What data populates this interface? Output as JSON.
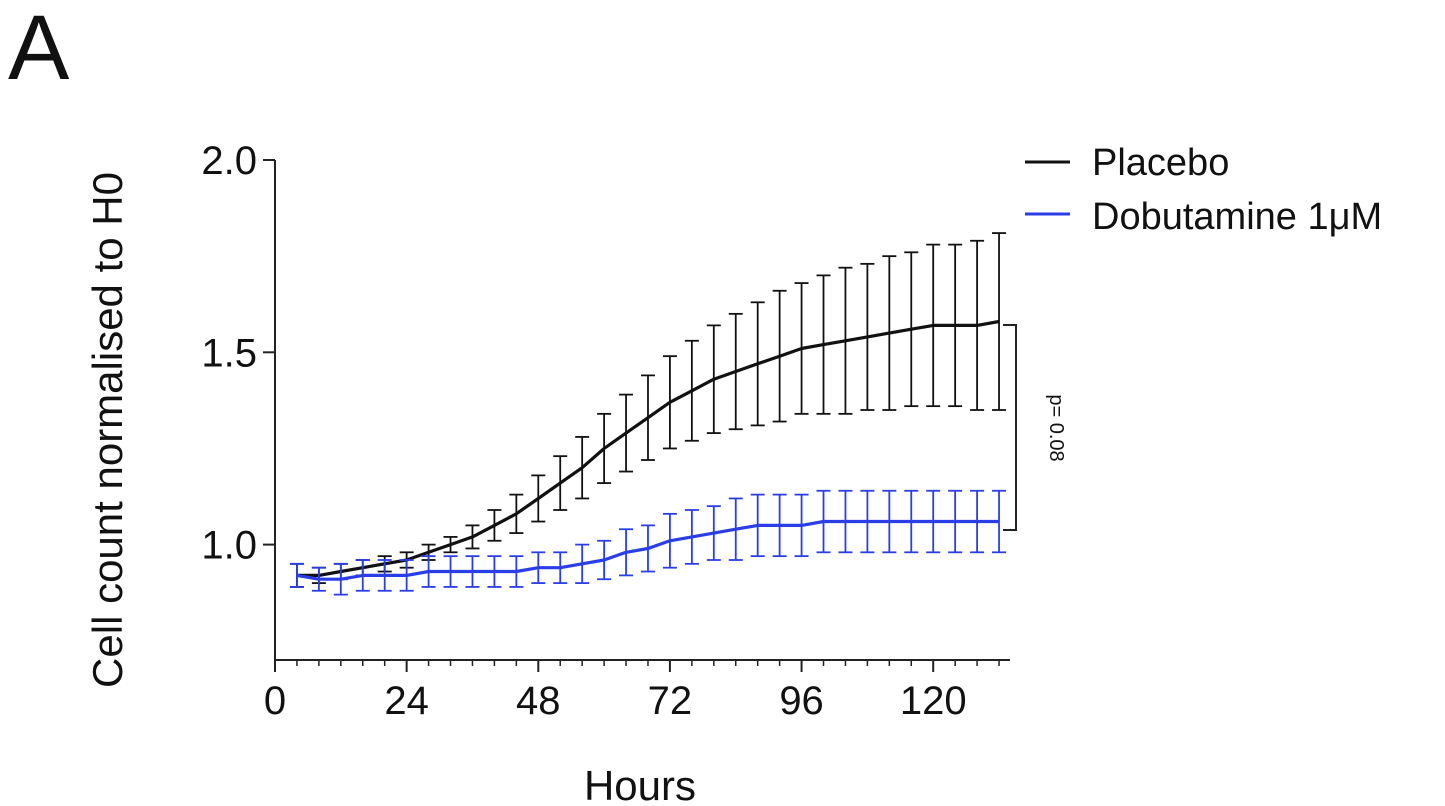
{
  "panel_label": "A",
  "chart_data": {
    "type": "line",
    "title": "",
    "xlabel": "Hours",
    "ylabel": "Cell count normalised to H0",
    "xlim": [
      0,
      134
    ],
    "ylim": [
      0.7,
      2.0
    ],
    "x_ticks": [
      0,
      24,
      48,
      72,
      96,
      120
    ],
    "y_ticks": [
      1.0,
      1.5,
      2.0
    ],
    "y_tick_labels": [
      "1.0",
      "1.5",
      "2.0"
    ],
    "grid": false,
    "legend_position": "top-right",
    "annotation": "p= 0.08",
    "x": [
      4,
      8,
      12,
      16,
      20,
      24,
      28,
      32,
      36,
      40,
      44,
      48,
      52,
      56,
      60,
      64,
      68,
      72,
      76,
      80,
      84,
      88,
      92,
      96,
      100,
      104,
      108,
      112,
      116,
      120,
      124,
      128,
      132
    ],
    "series": [
      {
        "name": "Placebo",
        "color": "#111111",
        "values": [
          0.92,
          0.92,
          0.93,
          0.94,
          0.95,
          0.96,
          0.98,
          1.0,
          1.02,
          1.05,
          1.08,
          1.12,
          1.16,
          1.2,
          1.25,
          1.29,
          1.33,
          1.37,
          1.4,
          1.43,
          1.45,
          1.47,
          1.49,
          1.51,
          1.52,
          1.53,
          1.54,
          1.55,
          1.56,
          1.57,
          1.57,
          1.57,
          1.58
        ],
        "error": [
          0.03,
          0.02,
          0.02,
          0.02,
          0.02,
          0.02,
          0.02,
          0.02,
          0.03,
          0.04,
          0.05,
          0.06,
          0.07,
          0.08,
          0.09,
          0.1,
          0.11,
          0.12,
          0.13,
          0.14,
          0.15,
          0.16,
          0.17,
          0.17,
          0.18,
          0.19,
          0.19,
          0.2,
          0.2,
          0.21,
          0.21,
          0.22,
          0.23
        ]
      },
      {
        "name": "Dobutamine 1μM",
        "color": "#2a3ee8",
        "values": [
          0.92,
          0.91,
          0.91,
          0.92,
          0.92,
          0.92,
          0.93,
          0.93,
          0.93,
          0.93,
          0.93,
          0.94,
          0.94,
          0.95,
          0.96,
          0.98,
          0.99,
          1.01,
          1.02,
          1.03,
          1.04,
          1.05,
          1.05,
          1.05,
          1.06,
          1.06,
          1.06,
          1.06,
          1.06,
          1.06,
          1.06,
          1.06,
          1.06
        ],
        "error": [
          0.03,
          0.03,
          0.04,
          0.04,
          0.04,
          0.04,
          0.04,
          0.04,
          0.04,
          0.04,
          0.04,
          0.04,
          0.04,
          0.05,
          0.05,
          0.06,
          0.06,
          0.07,
          0.07,
          0.07,
          0.08,
          0.08,
          0.08,
          0.08,
          0.08,
          0.08,
          0.08,
          0.08,
          0.08,
          0.08,
          0.08,
          0.08,
          0.08
        ]
      }
    ]
  }
}
